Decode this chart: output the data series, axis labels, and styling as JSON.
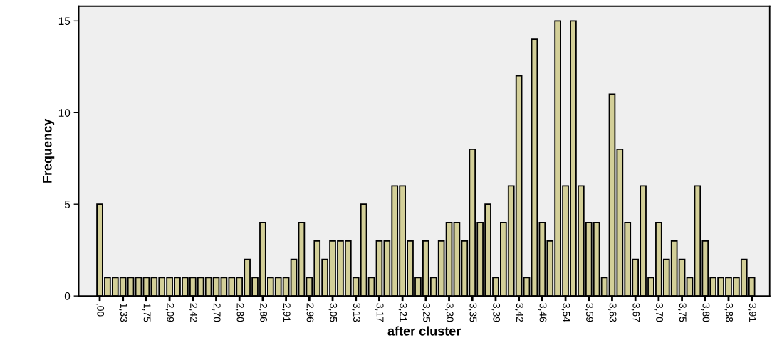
{
  "chart_data": {
    "type": "bar",
    "xlabel": "after cluster",
    "ylabel": "Frequency",
    "categories": [
      ",00",
      null,
      null,
      "1,33",
      null,
      null,
      "1,75",
      null,
      null,
      "2,09",
      null,
      null,
      "2,42",
      null,
      null,
      "2,70",
      null,
      null,
      "2,80",
      null,
      null,
      "2,86",
      null,
      null,
      "2,91",
      null,
      null,
      "2,96",
      null,
      null,
      "3,05",
      null,
      null,
      "3,13",
      null,
      null,
      "3,17",
      null,
      null,
      "3,21",
      null,
      null,
      "3,25",
      null,
      null,
      "3,30",
      null,
      null,
      "3,35",
      null,
      null,
      "3,39",
      null,
      null,
      "3,42",
      null,
      null,
      "3,46",
      null,
      null,
      "3,54",
      null,
      null,
      "3,59",
      null,
      null,
      "3,63",
      null,
      null,
      "3,67",
      null,
      null,
      "3,70",
      null,
      null,
      "3,75",
      null,
      null,
      "3,80",
      null,
      null,
      "3,88",
      null,
      null,
      "3,91"
    ],
    "values": [
      5,
      1,
      1,
      1,
      1,
      1,
      1,
      1,
      1,
      1,
      1,
      1,
      1,
      1,
      1,
      1,
      1,
      1,
      1,
      2,
      1,
      4,
      1,
      1,
      1,
      2,
      4,
      1,
      3,
      2,
      3,
      3,
      3,
      1,
      5,
      1,
      3,
      3,
      6,
      6,
      3,
      1,
      3,
      1,
      3,
      4,
      4,
      3,
      8,
      4,
      5,
      1,
      4,
      6,
      12,
      1,
      14,
      4,
      3,
      15,
      6,
      15,
      6,
      4,
      4,
      1,
      11,
      8,
      4,
      2,
      6,
      1,
      4,
      2,
      3,
      2,
      1,
      6,
      3,
      1,
      1,
      1,
      1,
      2,
      1
    ],
    "color": "#d3cf98",
    "ylim": [
      0,
      15.8
    ],
    "yticks": [
      0,
      5,
      10,
      15
    ],
    "grid": false,
    "legend": false
  }
}
